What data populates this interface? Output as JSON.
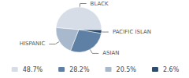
{
  "chart_data": {
    "type": "pie",
    "categories": [
      "BLACK",
      "PACIFIC ISLAN",
      "ASIAN",
      "HISPANIC"
    ],
    "values": [
      48.7,
      2.6,
      28.2,
      20.5
    ],
    "value_labels": [
      "48.7%",
      "2.6%",
      "28.2%",
      "20.5%"
    ],
    "colors": [
      "#d6dde7",
      "#2b4c6d",
      "#5f80a5",
      "#a9b9cd"
    ],
    "legend": "bottom"
  }
}
